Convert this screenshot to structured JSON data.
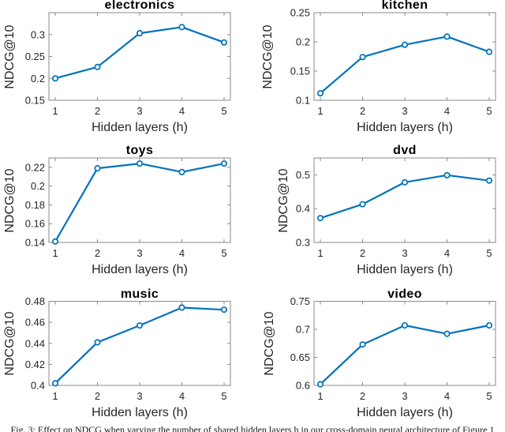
{
  "figure": {
    "caption": "Fig. 3: Effect on NDCG when varying the number of shared hidden layers h in our cross-domain neural architecture of Figure 1"
  },
  "style": {
    "line_color": "#0072BD",
    "axis_color": "#8a8a8a",
    "tick_text_color": "#262626",
    "title_color": "#000000",
    "marker_fill": "#ffffff",
    "background": "#ffffff"
  },
  "chart_data": [
    {
      "type": "line",
      "title": "electronics",
      "xlabel": "Hidden layers (h)",
      "ylabel": "NDCG@10",
      "x": [
        1,
        2,
        3,
        4,
        5
      ],
      "values": [
        0.2,
        0.226,
        0.303,
        0.317,
        0.282
      ],
      "xlim": [
        0.85,
        5.15
      ],
      "ylim": [
        0.15,
        0.35
      ],
      "xticks": [
        1,
        2,
        3,
        4,
        5
      ],
      "xtick_labels": [
        "1",
        "2",
        "3",
        "4",
        "5"
      ],
      "yticks": [
        0.15,
        0.2,
        0.25,
        0.3
      ],
      "ytick_labels": [
        "0.15",
        "0.2",
        "0.25",
        "0.3"
      ],
      "grid": false,
      "marker": "o"
    },
    {
      "type": "line",
      "title": "kitchen",
      "xlabel": "Hidden layers (h)",
      "ylabel": "NDCG@10",
      "x": [
        1,
        2,
        3,
        4,
        5
      ],
      "values": [
        0.112,
        0.174,
        0.195,
        0.209,
        0.183
      ],
      "xlim": [
        0.85,
        5.15
      ],
      "ylim": [
        0.1,
        0.25
      ],
      "xticks": [
        1,
        2,
        3,
        4,
        5
      ],
      "xtick_labels": [
        "1",
        "2",
        "3",
        "4",
        "5"
      ],
      "yticks": [
        0.1,
        0.15,
        0.2,
        0.25
      ],
      "ytick_labels": [
        "0.1",
        "0.15",
        "0.2",
        "0.25"
      ],
      "grid": false,
      "marker": "o"
    },
    {
      "type": "line",
      "title": "toys",
      "xlabel": "Hidden layers (h)",
      "ylabel": "NDCG@10",
      "x": [
        1,
        2,
        3,
        4,
        5
      ],
      "values": [
        0.141,
        0.219,
        0.224,
        0.215,
        0.224
      ],
      "xlim": [
        0.85,
        5.15
      ],
      "ylim": [
        0.14,
        0.23
      ],
      "xticks": [
        1,
        2,
        3,
        4,
        5
      ],
      "xtick_labels": [
        "1",
        "2",
        "3",
        "4",
        "5"
      ],
      "yticks": [
        0.14,
        0.16,
        0.18,
        0.2,
        0.22
      ],
      "ytick_labels": [
        "0.14",
        "0.16",
        "0.18",
        "0.2",
        "0.22"
      ],
      "grid": false,
      "marker": "o"
    },
    {
      "type": "line",
      "title": "dvd",
      "xlabel": "Hidden layers (h)",
      "ylabel": "NDCG@10",
      "x": [
        1,
        2,
        3,
        4,
        5
      ],
      "values": [
        0.372,
        0.413,
        0.478,
        0.499,
        0.483
      ],
      "xlim": [
        0.85,
        5.15
      ],
      "ylim": [
        0.3,
        0.55
      ],
      "xticks": [
        1,
        2,
        3,
        4,
        5
      ],
      "xtick_labels": [
        "1",
        "2",
        "3",
        "4",
        "5"
      ],
      "yticks": [
        0.3,
        0.4,
        0.5
      ],
      "ytick_labels": [
        "0.3",
        "0.4",
        "0.5"
      ],
      "grid": false,
      "marker": "o"
    },
    {
      "type": "line",
      "title": "music",
      "xlabel": "Hidden layers (h)",
      "ylabel": "NDCG@10",
      "x": [
        1,
        2,
        3,
        4,
        5
      ],
      "values": [
        0.402,
        0.441,
        0.457,
        0.474,
        0.472
      ],
      "xlim": [
        0.85,
        5.15
      ],
      "ylim": [
        0.4,
        0.48
      ],
      "xticks": [
        1,
        2,
        3,
        4,
        5
      ],
      "xtick_labels": [
        "1",
        "2",
        "3",
        "4",
        "5"
      ],
      "yticks": [
        0.4,
        0.42,
        0.44,
        0.46,
        0.48
      ],
      "ytick_labels": [
        "0.4",
        "0.42",
        "0.44",
        "0.46",
        "0.48"
      ],
      "grid": false,
      "marker": "o"
    },
    {
      "type": "line",
      "title": "video",
      "xlabel": "Hidden layers (h)",
      "ylabel": "NDCG@10",
      "x": [
        1,
        2,
        3,
        4,
        5
      ],
      "values": [
        0.602,
        0.673,
        0.707,
        0.692,
        0.707
      ],
      "xlim": [
        0.85,
        5.15
      ],
      "ylim": [
        0.6,
        0.75
      ],
      "xticks": [
        1,
        2,
        3,
        4,
        5
      ],
      "xtick_labels": [
        "1",
        "2",
        "3",
        "4",
        "5"
      ],
      "yticks": [
        0.6,
        0.65,
        0.7,
        0.75
      ],
      "ytick_labels": [
        "0.6",
        "0.65",
        "0.7",
        "0.75"
      ],
      "grid": false,
      "marker": "o"
    }
  ]
}
